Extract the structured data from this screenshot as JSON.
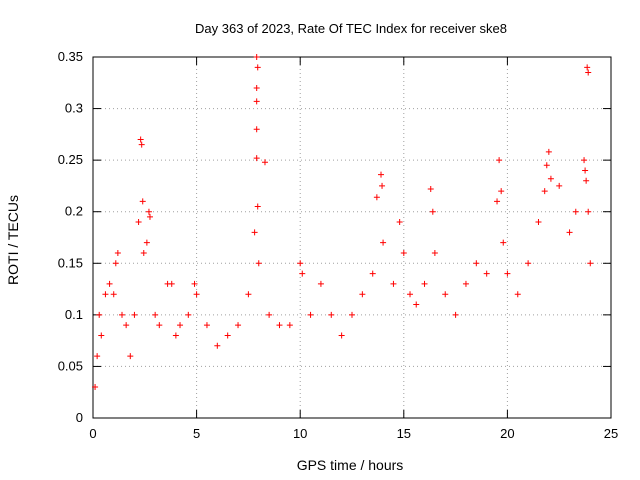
{
  "chart_data": {
    "type": "scatter",
    "title": "Day 363 of 2023, Rate Of TEC Index for receiver ske8",
    "xlabel": "GPS time / hours",
    "ylabel": "ROTI / TECUs",
    "xlim": [
      0,
      25
    ],
    "ylim": [
      0,
      0.35
    ],
    "xticks": [
      0,
      5,
      10,
      15,
      20,
      25
    ],
    "yticks": [
      0,
      0.05,
      0.1,
      0.15,
      0.2,
      0.25,
      0.3,
      0.35
    ],
    "xtick_labels": [
      "0",
      "5",
      "10",
      "15",
      "20",
      "25"
    ],
    "ytick_labels": [
      "0",
      "0.05",
      "0.1",
      "0.15",
      "0.2",
      "0.25",
      "0.3",
      "0.35"
    ],
    "grid": true,
    "marker": "+",
    "marker_color": "#ff0000",
    "series": [
      {
        "points": [
          [
            0.1,
            0.03
          ],
          [
            0.2,
            0.06
          ],
          [
            0.3,
            0.1
          ],
          [
            0.4,
            0.08
          ],
          [
            0.6,
            0.12
          ],
          [
            0.8,
            0.13
          ],
          [
            1.0,
            0.12
          ],
          [
            1.1,
            0.15
          ],
          [
            1.2,
            0.16
          ],
          [
            1.4,
            0.1
          ],
          [
            1.6,
            0.09
          ],
          [
            1.8,
            0.06
          ],
          [
            2.0,
            0.1
          ],
          [
            2.2,
            0.19
          ],
          [
            2.3,
            0.27
          ],
          [
            2.35,
            0.265
          ],
          [
            2.4,
            0.21
          ],
          [
            2.45,
            0.16
          ],
          [
            2.6,
            0.17
          ],
          [
            2.7,
            0.2
          ],
          [
            2.75,
            0.195
          ],
          [
            3.0,
            0.1
          ],
          [
            3.2,
            0.09
          ],
          [
            3.6,
            0.13
          ],
          [
            3.8,
            0.13
          ],
          [
            4.0,
            0.08
          ],
          [
            4.2,
            0.09
          ],
          [
            4.6,
            0.1
          ],
          [
            4.9,
            0.13
          ],
          [
            5.0,
            0.12
          ],
          [
            5.5,
            0.09
          ],
          [
            6.0,
            0.07
          ],
          [
            6.5,
            0.08
          ],
          [
            7.0,
            0.09
          ],
          [
            7.5,
            0.12
          ],
          [
            7.8,
            0.18
          ],
          [
            7.9,
            0.35
          ],
          [
            7.95,
            0.34
          ],
          [
            7.9,
            0.32
          ],
          [
            7.9,
            0.307
          ],
          [
            7.9,
            0.28
          ],
          [
            7.9,
            0.252
          ],
          [
            7.95,
            0.205
          ],
          [
            8.0,
            0.15
          ],
          [
            8.3,
            0.248
          ],
          [
            8.5,
            0.1
          ],
          [
            9.0,
            0.09
          ],
          [
            9.5,
            0.09
          ],
          [
            10.0,
            0.15
          ],
          [
            10.1,
            0.14
          ],
          [
            10.5,
            0.1
          ],
          [
            11.0,
            0.13
          ],
          [
            11.5,
            0.1
          ],
          [
            12.0,
            0.08
          ],
          [
            12.5,
            0.1
          ],
          [
            13.0,
            0.12
          ],
          [
            13.5,
            0.14
          ],
          [
            13.7,
            0.214
          ],
          [
            13.9,
            0.236
          ],
          [
            13.95,
            0.225
          ],
          [
            14.0,
            0.17
          ],
          [
            14.5,
            0.13
          ],
          [
            14.8,
            0.19
          ],
          [
            15.0,
            0.16
          ],
          [
            15.3,
            0.12
          ],
          [
            15.6,
            0.11
          ],
          [
            16.0,
            0.13
          ],
          [
            16.3,
            0.222
          ],
          [
            16.4,
            0.2
          ],
          [
            16.5,
            0.16
          ],
          [
            17.0,
            0.12
          ],
          [
            17.5,
            0.1
          ],
          [
            18.0,
            0.13
          ],
          [
            18.5,
            0.15
          ],
          [
            19.0,
            0.14
          ],
          [
            19.5,
            0.21
          ],
          [
            19.6,
            0.25
          ],
          [
            19.7,
            0.22
          ],
          [
            19.8,
            0.17
          ],
          [
            20.0,
            0.14
          ],
          [
            20.5,
            0.12
          ],
          [
            21.0,
            0.15
          ],
          [
            21.5,
            0.19
          ],
          [
            21.8,
            0.22
          ],
          [
            21.9,
            0.245
          ],
          [
            22.0,
            0.258
          ],
          [
            22.1,
            0.232
          ],
          [
            22.5,
            0.225
          ],
          [
            23.0,
            0.18
          ],
          [
            23.3,
            0.2
          ],
          [
            23.7,
            0.25
          ],
          [
            23.75,
            0.24
          ],
          [
            23.8,
            0.23
          ],
          [
            23.85,
            0.34
          ],
          [
            23.9,
            0.335
          ],
          [
            23.9,
            0.2
          ],
          [
            24.0,
            0.15
          ]
        ]
      }
    ]
  }
}
